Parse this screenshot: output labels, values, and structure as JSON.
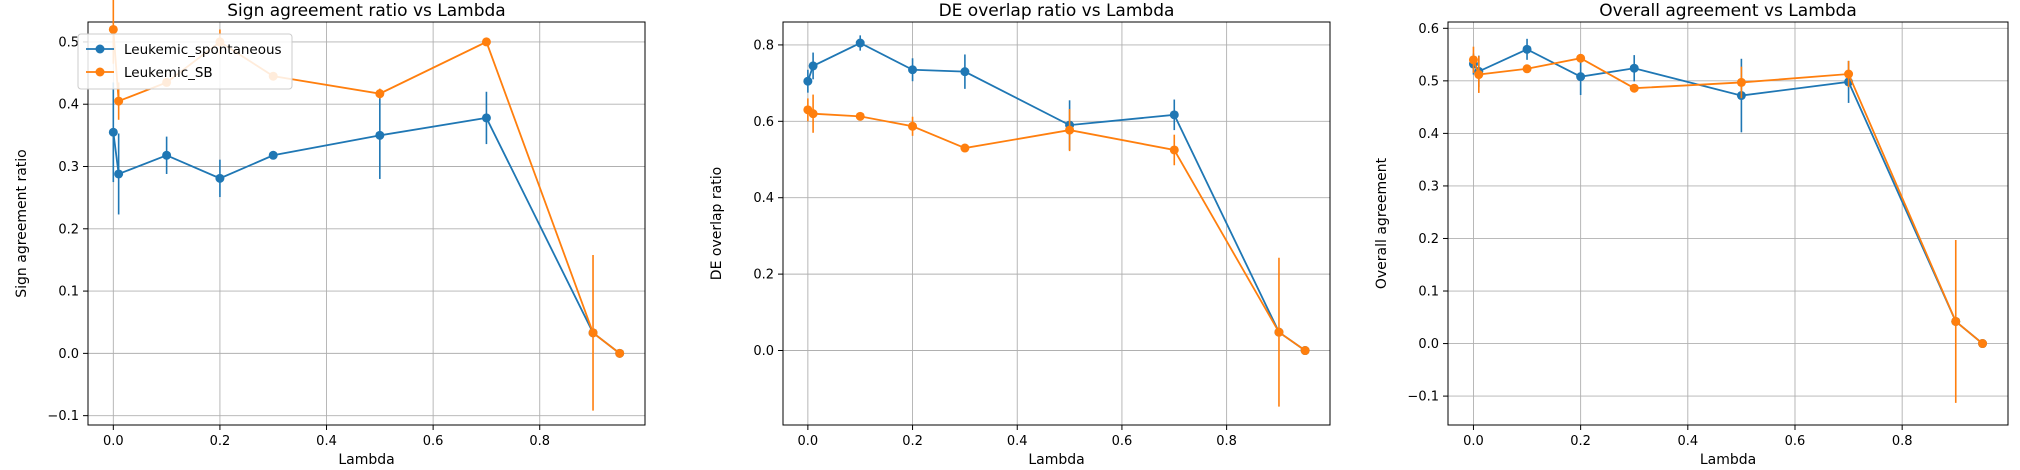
{
  "colors": {
    "series1": "#1f77b4",
    "series2": "#ff7f0e",
    "grid": "#b0b0b0",
    "axes": "#000000"
  },
  "legend": {
    "placement": "top-left",
    "entries": [
      "Leukemic_spontaneous",
      "Leukemic_SB"
    ]
  },
  "chart_data": [
    {
      "type": "line",
      "title": "Sign agreement ratio vs Lambda",
      "xlabel": "Lambda",
      "ylabel": "Sign agreement ratio",
      "xlim": [
        -0.0475,
        0.9975
      ],
      "ylim": [
        -0.115,
        0.532
      ],
      "xticks": [
        0.0,
        0.2,
        0.4,
        0.6,
        0.8
      ],
      "xtick_labels": [
        "0.0",
        "0.2",
        "0.4",
        "0.6",
        "0.8"
      ],
      "yticks": [
        -0.1,
        0.0,
        0.1,
        0.2,
        0.3,
        0.4,
        0.5
      ],
      "ytick_labels": [
        "−0.1",
        "0.0",
        "0.1",
        "0.2",
        "0.3",
        "0.4",
        "0.5"
      ],
      "grid": true,
      "x": [
        0.0,
        0.01,
        0.1,
        0.2,
        0.3,
        0.5,
        0.7,
        0.9,
        0.95
      ],
      "series": [
        {
          "name": "Leukemic_spontaneous",
          "values": [
            0.355,
            0.288,
            0.318,
            0.281,
            0.318,
            0.35,
            0.378,
            0.033,
            0.0
          ],
          "errors": [
            0.08,
            0.065,
            0.03,
            0.03,
            0.005,
            0.07,
            0.042,
            0.0,
            0.0
          ]
        },
        {
          "name": "Leukemic_SB",
          "values": [
            0.52,
            0.405,
            0.435,
            0.5,
            0.445,
            0.417,
            0.5,
            0.033,
            0.0
          ],
          "errors": [
            0.055,
            0.03,
            0.005,
            0.02,
            0.005,
            0.008,
            0.0,
            0.125,
            0.0
          ]
        }
      ]
    },
    {
      "type": "line",
      "title": "DE overlap ratio vs Lambda",
      "xlabel": "Lambda",
      "ylabel": "DE overlap ratio",
      "xlim": [
        -0.0475,
        0.9975
      ],
      "ylim": [
        -0.195,
        0.86
      ],
      "xticks": [
        0.0,
        0.2,
        0.4,
        0.6,
        0.8
      ],
      "xtick_labels": [
        "0.0",
        "0.2",
        "0.4",
        "0.6",
        "0.8"
      ],
      "yticks": [
        0.0,
        0.2,
        0.4,
        0.6,
        0.8
      ],
      "ytick_labels": [
        "0.0",
        "0.2",
        "0.4",
        "0.6",
        "0.8"
      ],
      "grid": true,
      "x": [
        0.0,
        0.01,
        0.1,
        0.2,
        0.3,
        0.5,
        0.7,
        0.9,
        0.95
      ],
      "series": [
        {
          "name": "Leukemic_spontaneous",
          "values": [
            0.705,
            0.745,
            0.805,
            0.735,
            0.73,
            0.59,
            0.617,
            0.048,
            0.0
          ],
          "errors": [
            0.03,
            0.035,
            0.02,
            0.03,
            0.045,
            0.065,
            0.04,
            0.0,
            0.0
          ]
        },
        {
          "name": "Leukemic_SB",
          "values": [
            0.63,
            0.62,
            0.613,
            0.587,
            0.53,
            0.577,
            0.525,
            0.048,
            0.0
          ],
          "errors": [
            0.03,
            0.05,
            0.005,
            0.025,
            0.005,
            0.055,
            0.04,
            0.195,
            0.0
          ]
        }
      ]
    },
    {
      "type": "line",
      "title": "Overall agreement vs Lambda",
      "xlabel": "Lambda",
      "ylabel": "Overall agreement",
      "xlim": [
        -0.0475,
        0.9975
      ],
      "ylim": [
        -0.155,
        0.612
      ],
      "xticks": [
        0.0,
        0.2,
        0.4,
        0.6,
        0.8
      ],
      "xtick_labels": [
        "0.0",
        "0.2",
        "0.4",
        "0.6",
        "0.8"
      ],
      "yticks": [
        -0.1,
        0.0,
        0.1,
        0.2,
        0.3,
        0.4,
        0.5,
        0.6
      ],
      "ytick_labels": [
        "−0.1",
        "0.0",
        "0.1",
        "0.2",
        "0.3",
        "0.4",
        "0.5",
        "0.6"
      ],
      "grid": true,
      "x": [
        0.0,
        0.01,
        0.1,
        0.2,
        0.3,
        0.5,
        0.7,
        0.9,
        0.95
      ],
      "series": [
        {
          "name": "Leukemic_spontaneous",
          "values": [
            0.532,
            0.518,
            0.56,
            0.508,
            0.524,
            0.472,
            0.498,
            0.042,
            0.0
          ],
          "errors": [
            0.02,
            0.03,
            0.02,
            0.035,
            0.025,
            0.07,
            0.04,
            0.0,
            0.0
          ]
        },
        {
          "name": "Leukemic_SB",
          "values": [
            0.54,
            0.512,
            0.523,
            0.543,
            0.486,
            0.497,
            0.513,
            0.042,
            0.0
          ],
          "errors": [
            0.025,
            0.035,
            0.005,
            0.005,
            0.005,
            0.03,
            0.025,
            0.155,
            0.0
          ]
        }
      ]
    }
  ]
}
